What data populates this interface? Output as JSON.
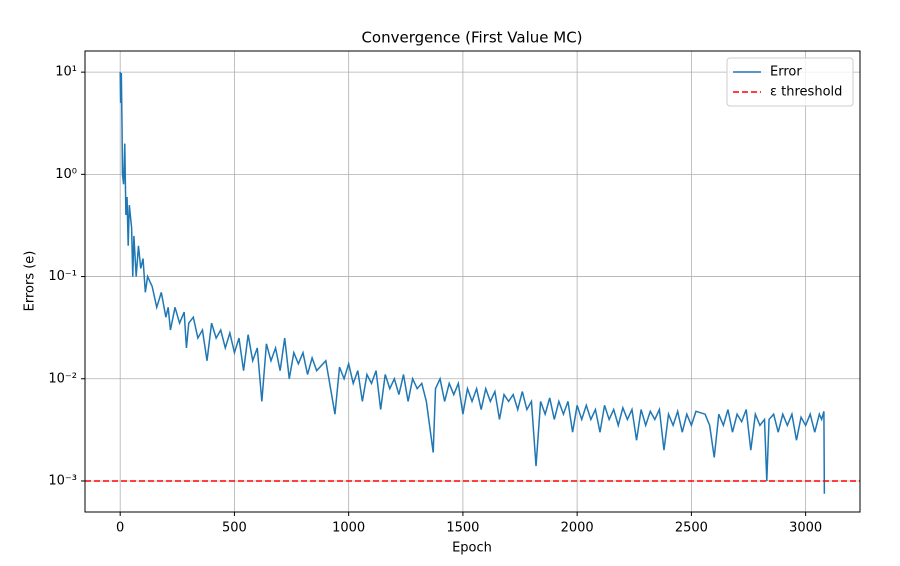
{
  "chart_data": {
    "type": "line",
    "title": "Convergence (First Value MC)",
    "xlabel": "Epoch",
    "ylabel": "Errors (e)",
    "yscale": "log",
    "grid": true,
    "legend": "upper right",
    "xlim": [
      -154,
      3238
    ],
    "ylim": [
      0.000497,
      16.1
    ],
    "xticks": [
      0,
      500,
      1000,
      1500,
      2000,
      2500,
      3000
    ],
    "yticks": [
      {
        "value": 10,
        "label": "10¹"
      },
      {
        "value": 1,
        "label": "10⁰"
      },
      {
        "value": 0.1,
        "label": "10⁻¹"
      },
      {
        "value": 0.01,
        "label": "10⁻²"
      },
      {
        "value": 0.001,
        "label": "10⁻³"
      }
    ],
    "x": [
      0,
      2,
      5,
      8,
      10,
      15,
      20,
      25,
      30,
      35,
      40,
      50,
      55,
      60,
      70,
      80,
      90,
      100,
      110,
      120,
      140,
      160,
      180,
      200,
      210,
      220,
      240,
      260,
      280,
      290,
      300,
      320,
      340,
      360,
      380,
      400,
      420,
      440,
      460,
      480,
      500,
      520,
      540,
      560,
      580,
      600,
      620,
      640,
      660,
      680,
      700,
      720,
      740,
      760,
      780,
      800,
      820,
      840,
      860,
      900,
      940,
      960,
      980,
      1000,
      1020,
      1040,
      1060,
      1080,
      1100,
      1120,
      1140,
      1160,
      1180,
      1200,
      1220,
      1240,
      1260,
      1280,
      1300,
      1320,
      1340,
      1370,
      1380,
      1400,
      1420,
      1440,
      1460,
      1480,
      1500,
      1520,
      1540,
      1560,
      1580,
      1600,
      1620,
      1640,
      1660,
      1680,
      1700,
      1720,
      1740,
      1760,
      1780,
      1800,
      1820,
      1840,
      1860,
      1880,
      1900,
      1920,
      1940,
      1960,
      1980,
      2000,
      2020,
      2040,
      2060,
      2080,
      2100,
      2120,
      2140,
      2160,
      2180,
      2200,
      2220,
      2240,
      2260,
      2280,
      2300,
      2320,
      2340,
      2360,
      2380,
      2400,
      2420,
      2440,
      2460,
      2480,
      2500,
      2520,
      2560,
      2580,
      2600,
      2620,
      2640,
      2660,
      2680,
      2700,
      2720,
      2740,
      2760,
      2780,
      2800,
      2820,
      2830,
      2840,
      2860,
      2880,
      2900,
      2920,
      2940,
      2960,
      2980,
      3000,
      3020,
      3040,
      3060,
      3070,
      3080,
      3082
    ],
    "series": [
      {
        "name": "Error",
        "color": "#1f77b4",
        "values": [
          10,
          5,
          9.8,
          3,
          1,
          0.8,
          2,
          0.4,
          0.6,
          0.2,
          0.5,
          0.3,
          0.1,
          0.25,
          0.1,
          0.2,
          0.12,
          0.15,
          0.07,
          0.1,
          0.08,
          0.05,
          0.07,
          0.04,
          0.05,
          0.03,
          0.05,
          0.035,
          0.045,
          0.02,
          0.035,
          0.04,
          0.025,
          0.03,
          0.015,
          0.035,
          0.025,
          0.03,
          0.02,
          0.028,
          0.018,
          0.025,
          0.012,
          0.027,
          0.015,
          0.02,
          0.006,
          0.022,
          0.015,
          0.02,
          0.012,
          0.025,
          0.01,
          0.018,
          0.014,
          0.018,
          0.011,
          0.016,
          0.012,
          0.015,
          0.0045,
          0.013,
          0.01,
          0.014,
          0.009,
          0.012,
          0.006,
          0.011,
          0.009,
          0.012,
          0.005,
          0.011,
          0.008,
          0.01,
          0.007,
          0.011,
          0.006,
          0.01,
          0.008,
          0.009,
          0.006,
          0.0019,
          0.008,
          0.01,
          0.006,
          0.009,
          0.007,
          0.009,
          0.0045,
          0.008,
          0.006,
          0.008,
          0.005,
          0.008,
          0.006,
          0.0075,
          0.004,
          0.007,
          0.006,
          0.007,
          0.005,
          0.0075,
          0.005,
          0.006,
          0.0014,
          0.006,
          0.0045,
          0.0065,
          0.004,
          0.006,
          0.0045,
          0.006,
          0.003,
          0.0055,
          0.004,
          0.0055,
          0.004,
          0.005,
          0.003,
          0.0055,
          0.004,
          0.005,
          0.0035,
          0.0052,
          0.004,
          0.005,
          0.0025,
          0.005,
          0.0035,
          0.0048,
          0.004,
          0.005,
          0.002,
          0.0045,
          0.0035,
          0.0048,
          0.003,
          0.0045,
          0.0035,
          0.0048,
          0.0045,
          0.0035,
          0.0017,
          0.0045,
          0.0035,
          0.005,
          0.003,
          0.0045,
          0.0038,
          0.005,
          0.002,
          0.0045,
          0.0035,
          0.004,
          0.001,
          0.004,
          0.0045,
          0.003,
          0.0045,
          0.0035,
          0.0045,
          0.0025,
          0.0042,
          0.0035,
          0.0045,
          0.003,
          0.0045,
          0.004,
          0.0048,
          0.00075
        ]
      }
    ],
    "hlines": [
      {
        "name": "ε threshold",
        "value": 0.001,
        "color": "#ff0000"
      }
    ]
  }
}
